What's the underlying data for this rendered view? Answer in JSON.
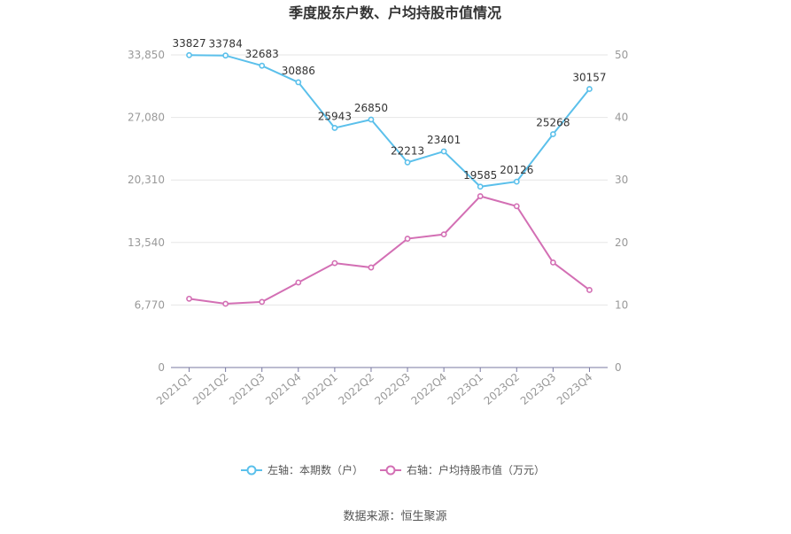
{
  "chart_data": {
    "type": "line",
    "title": "季度股东户数、户均持股市值情况",
    "categories": [
      "2021Q1",
      "2021Q2",
      "2021Q3",
      "2021Q4",
      "2022Q1",
      "2022Q2",
      "2022Q3",
      "2022Q4",
      "2023Q1",
      "2023Q2",
      "2023Q3",
      "2023Q4"
    ],
    "y_left": {
      "ticks": [
        "0",
        "6,770",
        "13,540",
        "20,310",
        "27,080",
        "33,850"
      ],
      "min": 0,
      "max": 33850
    },
    "y_right": {
      "ticks": [
        "0",
        "10",
        "20",
        "30",
        "40",
        "50"
      ],
      "min": 0,
      "max": 50
    },
    "series": [
      {
        "name": "左轴：本期数（户）",
        "axis": "left",
        "color": "#5bc0eb",
        "values": [
          33827,
          33784,
          32683,
          30886,
          25943,
          26850,
          22213,
          23401,
          19585,
          20126,
          25268,
          30157
        ],
        "labels": [
          "33827",
          "33784",
          "32683",
          "30886",
          "25943",
          "26850",
          "22213",
          "23401",
          "19585",
          "20126",
          "25268",
          "30157"
        ]
      },
      {
        "name": "右轴：户均持股市值（万元）",
        "axis": "right",
        "color": "#d36fb4",
        "values": [
          11.0,
          10.2,
          10.5,
          13.6,
          16.7,
          16.0,
          20.6,
          21.3,
          27.4,
          25.8,
          16.8,
          12.4
        ]
      }
    ],
    "grid": true,
    "legend": "bottom"
  },
  "footer": {
    "source": "数据来源：恒生聚源"
  }
}
